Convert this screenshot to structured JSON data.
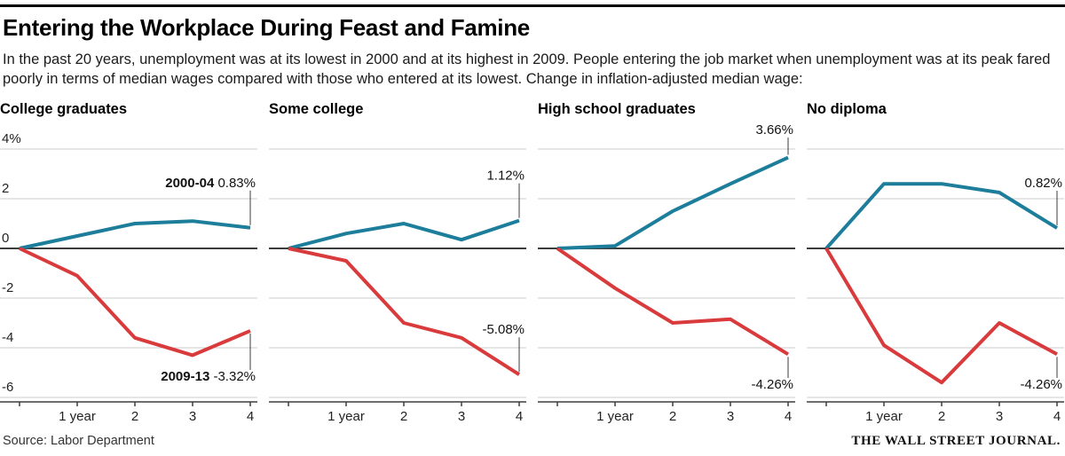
{
  "header": {
    "title": "Entering the Workplace During Feast and Famine",
    "subtitle": "In the past 20 years, unemployment was at its lowest in 2000 and at its highest in 2009. People entering the job market when unemployment was at its peak fared poorly in terms of median wages compared with those who entered at its lowest. Change in inflation-adjusted median wage:"
  },
  "footer": {
    "source": "Source: Labor Department",
    "brand": "THE WALL STREET JOURNAL."
  },
  "colors": {
    "cohort_2000": "#1d7e9c",
    "cohort_2009": "#d93a3c",
    "grid": "#cccccc",
    "zero_line": "#3d3d3d",
    "axis": "#3d3d3d",
    "label_text": "#111111"
  },
  "chart_data": [
    {
      "type": "line",
      "title": "College graduates",
      "x": [
        0,
        1,
        2,
        3,
        4
      ],
      "x_tick_labels": [
        "",
        "1 year",
        "2",
        "3",
        "4"
      ],
      "yticks": [
        4,
        2,
        0,
        -2,
        -4,
        -6
      ],
      "ytick_labels": [
        "4%",
        "2",
        "0",
        "-2",
        "-4",
        "-6"
      ],
      "show_y_tick_labels": true,
      "ylim": [
        -6.2,
        5.1
      ],
      "grid": true,
      "legend_position": "inline-end-labels",
      "series": [
        {
          "name": "2000-04",
          "values": [
            0,
            0.5,
            1.0,
            1.1,
            0.83
          ],
          "color": "#1d7e9c",
          "end_label": "0.83%",
          "show_name": true,
          "label_position": "above"
        },
        {
          "name": "2009-13",
          "values": [
            0,
            -1.1,
            -3.6,
            -4.3,
            -3.32
          ],
          "color": "#d93a3c",
          "end_label": "-3.32%",
          "show_name": true,
          "label_position": "below"
        }
      ]
    },
    {
      "type": "line",
      "title": "Some college",
      "x": [
        0,
        1,
        2,
        3,
        4
      ],
      "x_tick_labels": [
        "",
        "1 year",
        "2",
        "3",
        "4"
      ],
      "yticks": [
        4,
        2,
        0,
        -2,
        -4,
        -6
      ],
      "ytick_labels": [
        "4%",
        "2",
        "0",
        "-2",
        "-4",
        "-6"
      ],
      "show_y_tick_labels": false,
      "ylim": [
        -6.2,
        5.1
      ],
      "grid": true,
      "legend_position": "inline-end-labels",
      "series": [
        {
          "name": "2000-04",
          "values": [
            0,
            0.6,
            1.0,
            0.35,
            1.12
          ],
          "color": "#1d7e9c",
          "end_label": "1.12%",
          "show_name": false,
          "label_position": "above"
        },
        {
          "name": "2009-13",
          "values": [
            0,
            -0.5,
            -3.0,
            -3.6,
            -5.08
          ],
          "color": "#d93a3c",
          "end_label": "-5.08%",
          "show_name": false,
          "label_position": "above"
        }
      ]
    },
    {
      "type": "line",
      "title": "High school graduates",
      "x": [
        0,
        1,
        2,
        3,
        4
      ],
      "x_tick_labels": [
        "",
        "1 year",
        "2",
        "3",
        "4"
      ],
      "yticks": [
        4,
        2,
        0,
        -2,
        -4,
        -6
      ],
      "ytick_labels": [
        "4%",
        "2",
        "0",
        "-2",
        "-4",
        "-6"
      ],
      "show_y_tick_labels": false,
      "ylim": [
        -6.2,
        5.1
      ],
      "grid": true,
      "legend_position": "inline-end-labels",
      "series": [
        {
          "name": "2000-04",
          "values": [
            0,
            0.1,
            1.5,
            2.6,
            3.66
          ],
          "color": "#1d7e9c",
          "end_label": "3.66%",
          "show_name": false,
          "label_position": "above"
        },
        {
          "name": "2009-13",
          "values": [
            0,
            -1.6,
            -3.0,
            -2.85,
            -4.26
          ],
          "color": "#d93a3c",
          "end_label": "-4.26%",
          "show_name": false,
          "label_position": "below"
        }
      ]
    },
    {
      "type": "line",
      "title": "No diploma",
      "x": [
        0,
        1,
        2,
        3,
        4
      ],
      "x_tick_labels": [
        "",
        "1 year",
        "2",
        "3",
        "4"
      ],
      "yticks": [
        4,
        2,
        0,
        -2,
        -4,
        -6
      ],
      "ytick_labels": [
        "4%",
        "2",
        "0",
        "-2",
        "-4",
        "-6"
      ],
      "show_y_tick_labels": false,
      "ylim": [
        -6.2,
        5.1
      ],
      "grid": true,
      "legend_position": "inline-end-labels",
      "series": [
        {
          "name": "2000-04",
          "values": [
            0,
            2.6,
            2.6,
            2.25,
            0.82
          ],
          "color": "#1d7e9c",
          "end_label": "0.82%",
          "show_name": false,
          "label_position": "above"
        },
        {
          "name": "2009-13",
          "values": [
            0,
            -3.9,
            -5.4,
            -3.0,
            -4.26
          ],
          "color": "#d93a3c",
          "end_label": "-4.26%",
          "show_name": false,
          "label_position": "below"
        }
      ]
    }
  ]
}
